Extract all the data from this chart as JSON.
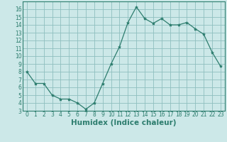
{
  "x": [
    0,
    1,
    2,
    3,
    4,
    5,
    6,
    7,
    8,
    9,
    10,
    11,
    12,
    13,
    14,
    15,
    16,
    17,
    18,
    19,
    20,
    21,
    22,
    23
  ],
  "y": [
    8.0,
    6.5,
    6.5,
    5.0,
    4.5,
    4.5,
    4.0,
    3.2,
    4.0,
    6.5,
    9.0,
    11.2,
    14.3,
    16.3,
    14.8,
    14.2,
    14.8,
    14.0,
    14.0,
    14.3,
    13.5,
    12.8,
    10.5,
    8.7
  ],
  "line_color": "#2d7d6e",
  "marker": "*",
  "marker_size": 3,
  "bg_color": "#cce8e8",
  "grid_color": "#8fbfbf",
  "xlabel": "Humidex (Indice chaleur)",
  "xlim": [
    -0.5,
    23.5
  ],
  "ylim": [
    3,
    17
  ],
  "yticks": [
    3,
    4,
    5,
    6,
    7,
    8,
    9,
    10,
    11,
    12,
    13,
    14,
    15,
    16
  ],
  "xticks": [
    0,
    1,
    2,
    3,
    4,
    5,
    6,
    7,
    8,
    9,
    10,
    11,
    12,
    13,
    14,
    15,
    16,
    17,
    18,
    19,
    20,
    21,
    22,
    23
  ],
  "tick_label_fontsize": 5.5,
  "xlabel_fontsize": 7.5,
  "spine_color": "#2d7d6e",
  "linewidth": 0.9
}
